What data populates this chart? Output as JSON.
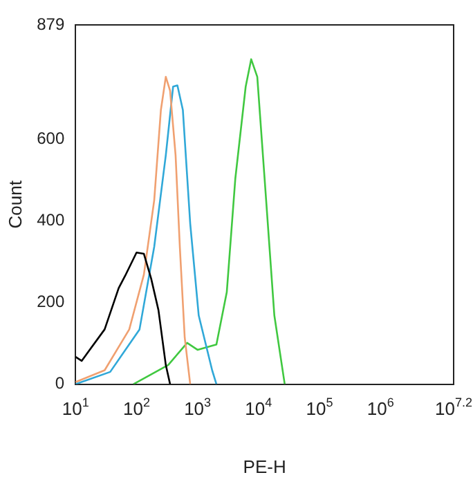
{
  "chart_data": {
    "type": "line",
    "xlabel": "PE-H",
    "ylabel": "Count",
    "log": "x",
    "grid": false,
    "legend": false,
    "marker": "none",
    "line_style": "solid",
    "xlim": [
      10,
      15848932
    ],
    "ylim": [
      0,
      879
    ],
    "xticks": [
      {
        "value": 10,
        "label": "10$^{1}$"
      },
      {
        "value": 100,
        "label": "10$^{2}$"
      },
      {
        "value": 1000,
        "label": "10$^{3}$"
      },
      {
        "value": 10000,
        "label": "10$^{4}$"
      },
      {
        "value": 100000,
        "label": "10$^{5}$"
      },
      {
        "value": 1000000,
        "label": "10$^{6}$"
      },
      {
        "value": 15848932,
        "label": "10$^{7.2}$"
      }
    ],
    "yticks": [
      0,
      200,
      400,
      600,
      879
    ],
    "series": [
      {
        "color": "#000000",
        "x": [
          10,
          12.6,
          30,
          51,
          65,
          100,
          132,
          174,
          229,
          302,
          355
        ],
        "values": [
          67,
          57,
          134,
          235,
          265,
          322,
          319,
          258,
          181,
          47,
          0
        ]
      },
      {
        "color": "#f0a070",
        "x": [
          10,
          30,
          76,
          132,
          195,
          251,
          302,
          355,
          437,
          513,
          617,
          759
        ],
        "values": [
          5,
          34,
          134,
          268,
          450,
          671,
          752,
          718,
          560,
          336,
          114,
          0
        ]
      },
      {
        "color": "#30a8d8",
        "x": [
          10,
          37,
          112,
          195,
          302,
          398,
          468,
          575,
          759,
          1047,
          1738,
          2042
        ],
        "values": [
          0,
          30,
          134,
          336,
          560,
          728,
          731,
          671,
          393,
          168,
          34,
          0
        ]
      },
      {
        "color": "#40c840",
        "x": [
          89,
          331,
          676,
          1000,
          2042,
          3020,
          4169,
          6166,
          7586,
          9550,
          12589,
          18197,
          26915
        ],
        "values": [
          0,
          47,
          101,
          84,
          97,
          225,
          503,
          728,
          795,
          752,
          503,
          168,
          0
        ]
      }
    ]
  }
}
